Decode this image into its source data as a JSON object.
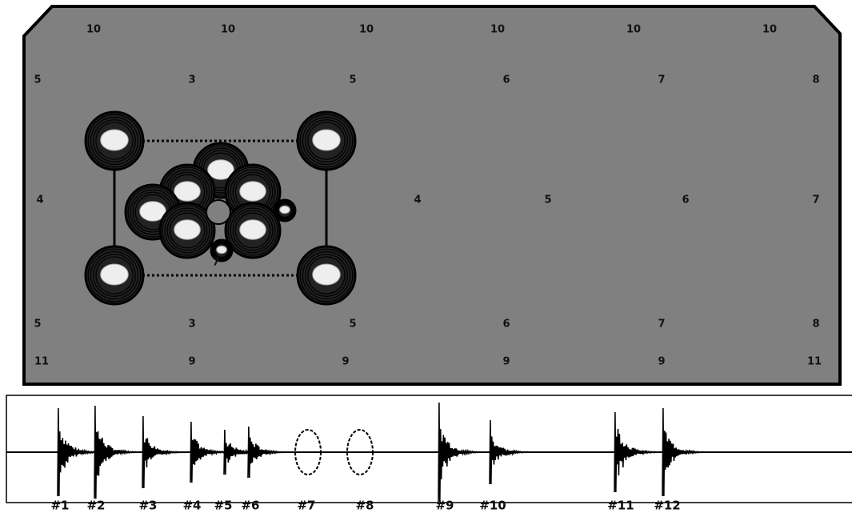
{
  "panel": {
    "row1": [
      "10",
      "10",
      "10",
      "10",
      "10",
      "10"
    ],
    "row2": [
      "5",
      "3",
      "5",
      "6",
      "7",
      "8"
    ],
    "row3": [
      "4",
      "4",
      "5",
      "6",
      "7"
    ],
    "row4": [
      "5",
      "3",
      "5",
      "6",
      "7",
      "8"
    ],
    "row5": [
      "11",
      "9",
      "9",
      "9",
      "9",
      "11"
    ],
    "small_label": "7"
  },
  "signal": {
    "labels": [
      "#1",
      "#2",
      "#3",
      "#4",
      "#5",
      "#6",
      "#7",
      "#8",
      "#9",
      "#10",
      "#11",
      "#12"
    ]
  }
}
